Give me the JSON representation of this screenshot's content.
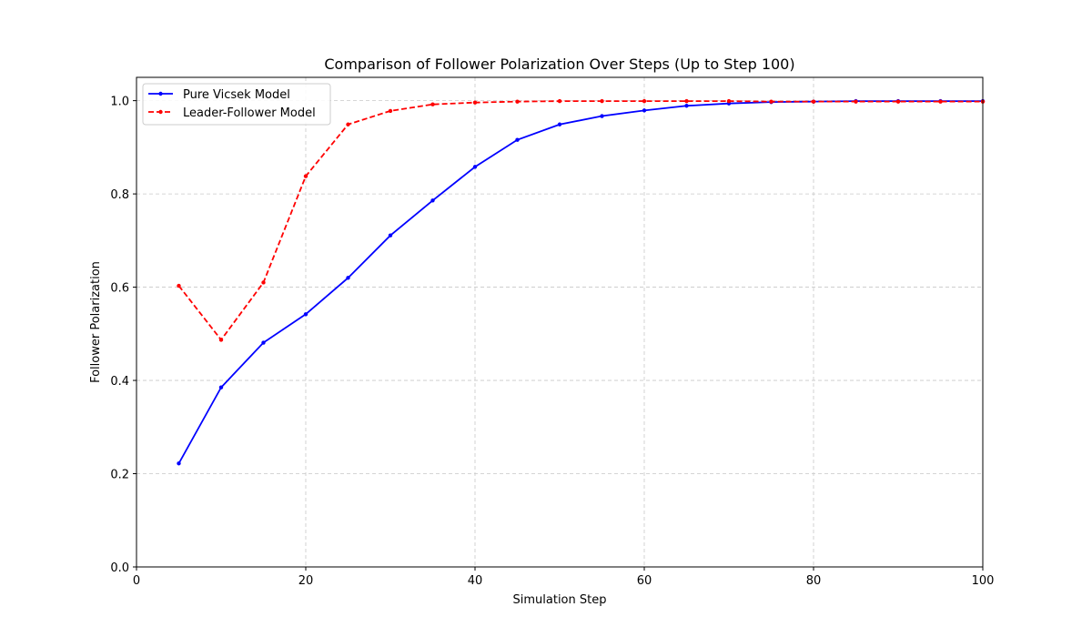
{
  "chart_data": {
    "type": "line",
    "title": "Comparison of Follower Polarization Over Steps (Up to Step 100)",
    "xlabel": "Simulation Step",
    "ylabel": "Follower Polarization",
    "xlim": [
      0,
      100
    ],
    "ylim": [
      0,
      1.05
    ],
    "xticks": [
      0,
      20,
      40,
      60,
      80,
      100
    ],
    "yticks": [
      0.0,
      0.2,
      0.4,
      0.6,
      0.8,
      1.0
    ],
    "xtick_labels": [
      "0",
      "20",
      "40",
      "60",
      "80",
      "100"
    ],
    "ytick_labels": [
      "0.0",
      "0.2",
      "0.4",
      "0.6",
      "0.8",
      "1.0"
    ],
    "grid": true,
    "legend_position": "top-left",
    "x": [
      5,
      10,
      15,
      20,
      25,
      30,
      35,
      40,
      45,
      50,
      55,
      60,
      65,
      70,
      75,
      80,
      85,
      90,
      95,
      100
    ],
    "series": [
      {
        "name": "Pure Vicsek Model",
        "color": "#0000ff",
        "line_style": "solid",
        "values": [
          0.222,
          0.385,
          0.481,
          0.542,
          0.62,
          0.711,
          0.786,
          0.858,
          0.916,
          0.949,
          0.967,
          0.979,
          0.989,
          0.994,
          0.997,
          0.998,
          0.999,
          0.999,
          0.999,
          0.999
        ]
      },
      {
        "name": "Leader-Follower Model",
        "color": "#ff0000",
        "line_style": "dashed",
        "values": [
          0.603,
          0.487,
          0.61,
          0.838,
          0.949,
          0.978,
          0.992,
          0.996,
          0.998,
          0.999,
          0.999,
          0.999,
          0.999,
          0.999,
          0.998,
          0.998,
          0.998,
          0.998,
          0.998,
          0.998
        ]
      }
    ]
  }
}
